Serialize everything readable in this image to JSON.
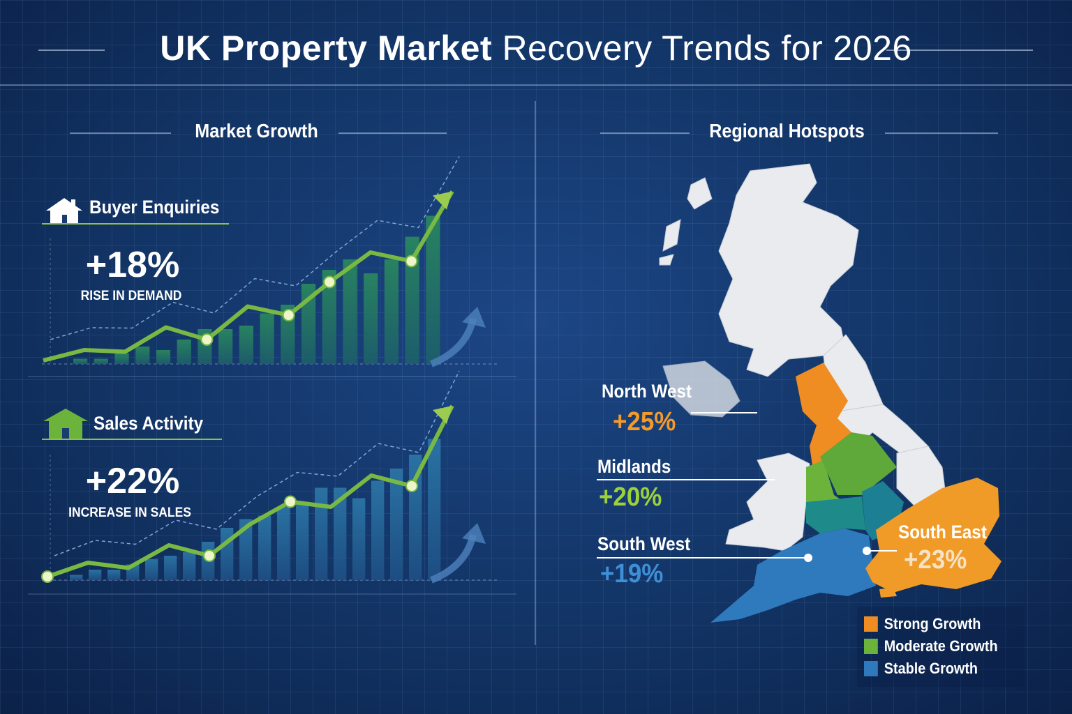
{
  "header": {
    "title_bold": "UK Property Market",
    "title_rest": "Recovery Trends for 2026"
  },
  "market_growth": {
    "heading": "Market Growth",
    "cards": [
      {
        "label": "Buyer Enquiries",
        "icon": "house-icon",
        "value": "+18%",
        "caption": "RISE IN DEMAND",
        "bar_levels": [
          0.03,
          0.03,
          0.06,
          0.1,
          0.08,
          0.14,
          0.2,
          0.2,
          0.22,
          0.29,
          0.34,
          0.46,
          0.54,
          0.6,
          0.52,
          0.6,
          0.73,
          0.85
        ],
        "line_levels": [
          0.02,
          0.08,
          0.07,
          0.21,
          0.14,
          0.33,
          0.28,
          0.47,
          0.64,
          0.59,
          0.99
        ]
      },
      {
        "label": "Sales Activity",
        "icon": "house-icon",
        "value": "+22%",
        "caption": "INCREASE IN SALES",
        "bar_levels": [
          0.03,
          0.06,
          0.06,
          0.09,
          0.12,
          0.14,
          0.16,
          0.22,
          0.3,
          0.35,
          0.37,
          0.42,
          0.45,
          0.53,
          0.53,
          0.47,
          0.57,
          0.64,
          0.72,
          0.81
        ],
        "line_levels": [
          0.02,
          0.1,
          0.07,
          0.2,
          0.14,
          0.32,
          0.45,
          0.42,
          0.6,
          0.54,
          1.0
        ]
      }
    ]
  },
  "regional": {
    "heading": "Regional Hotspots",
    "regions": [
      {
        "name": "North West",
        "value": "+25%",
        "color": "#f39a2a"
      },
      {
        "name": "Midlands",
        "value": "+20%",
        "color": "#9cd13c"
      },
      {
        "name": "South West",
        "value": "+19%",
        "color": "#3f8fd6"
      },
      {
        "name": "South East",
        "value": "+23%",
        "color": "#f7e2c4"
      }
    ],
    "legend": [
      {
        "label": "Strong Growth",
        "color": "#ef8c22"
      },
      {
        "label": "Moderate Growth",
        "color": "#6bb33a"
      },
      {
        "label": "Stable Growth",
        "color": "#2f79bd"
      }
    ]
  }
}
